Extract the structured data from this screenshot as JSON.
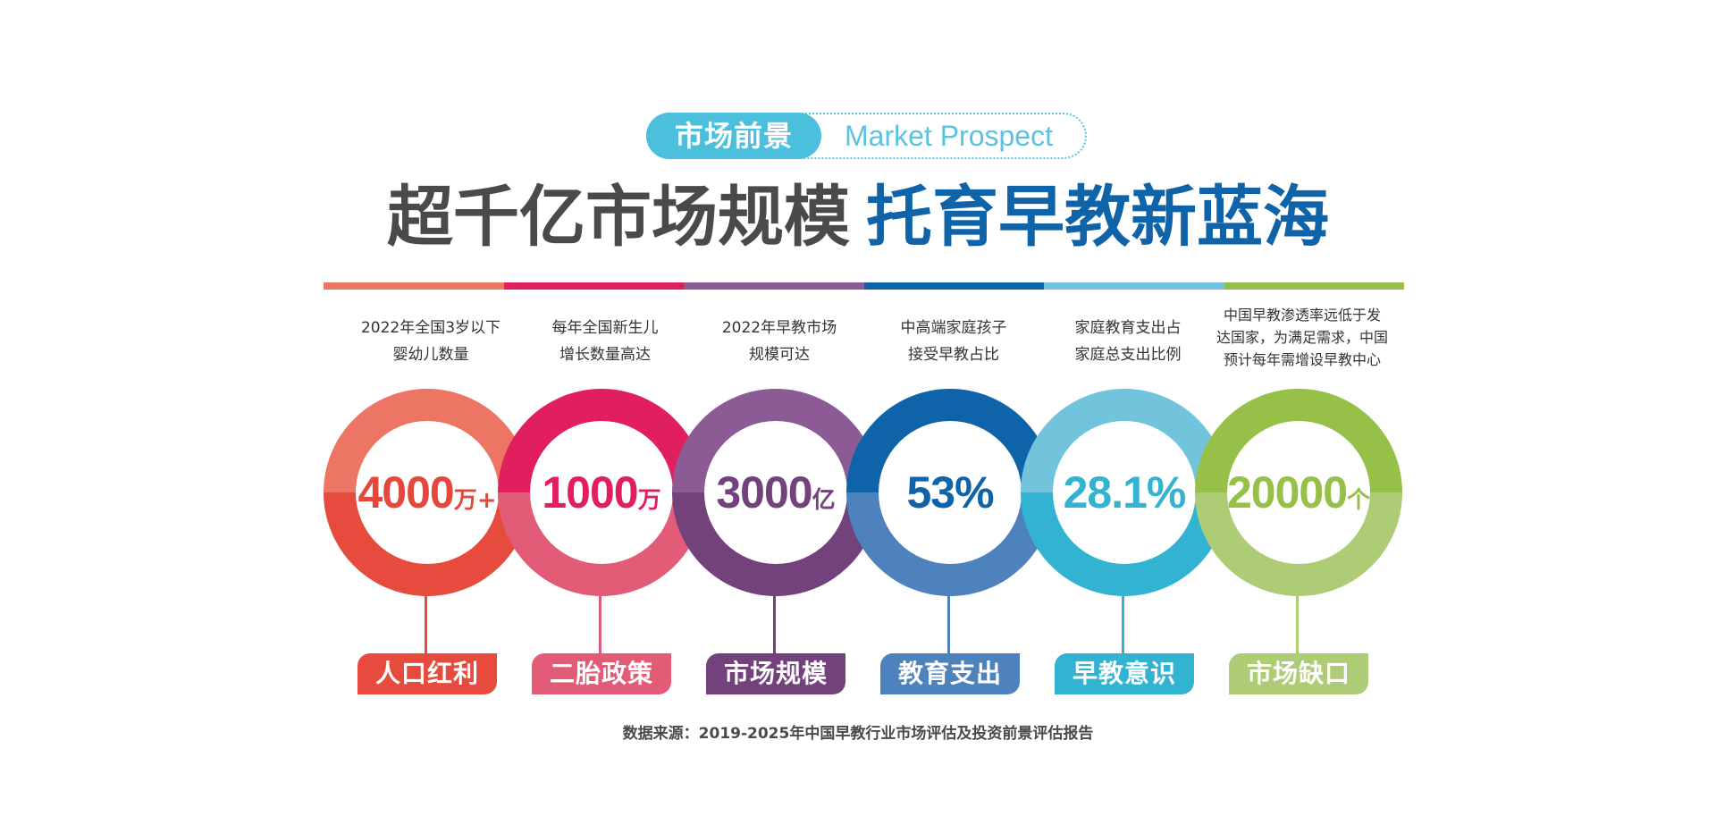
{
  "badge": {
    "label": "市场前景",
    "subtitle": "Market Prospect"
  },
  "headline": {
    "part1": "超千亿市场规模",
    "part2": "托育早教新蓝海"
  },
  "colors": {
    "coral": "#ec6b55",
    "magenta": "#e21f5e",
    "purple": "#8c5b95",
    "blue": "#0f63a8",
    "sky": "#4bbfdc",
    "green": "#96c047",
    "title_gray": "#4a4a4a",
    "title_blue": "#0f63a8"
  },
  "items": [
    {
      "desc_lines": [
        "2022年全国3岁以下",
        "婴幼儿数量"
      ],
      "value": "4000",
      "unit": "万+",
      "label": "人口红利",
      "color_top": "#ec7663",
      "color_bottom": "#e64b3e",
      "value_color": "#e5473d",
      "label_bg": "#e64b3e"
    },
    {
      "desc_lines": [
        "每年全国新生儿",
        "增长数量高达"
      ],
      "value": "1000",
      "unit": "万",
      "label": "二胎政策",
      "color_top": "#e21f5e",
      "color_bottom": "#e25c78",
      "value_color": "#e21f5e",
      "label_bg": "#e25c78"
    },
    {
      "desc_lines": [
        "2022年早教市场",
        "规模可达"
      ],
      "value": "3000",
      "unit": "亿",
      "label": "市场规模",
      "color_top": "#8c5b95",
      "color_bottom": "#73427c",
      "value_color": "#73427c",
      "label_bg": "#73427c"
    },
    {
      "desc_lines": [
        "中高端家庭孩子",
        "接受早教占比"
      ],
      "value": "53%",
      "unit": "",
      "label": "教育支出",
      "color_top": "#0f63a8",
      "color_bottom": "#4d82bc",
      "value_color": "#0f63a8",
      "label_bg": "#4d82bc"
    },
    {
      "desc_lines": [
        "家庭教育支出占",
        "家庭总支出比例"
      ],
      "value": "28.1%",
      "unit": "",
      "label": "早教意识",
      "color_top": "#72c4dc",
      "color_bottom": "#33b3d2",
      "value_color": "#33b3d2",
      "label_bg": "#33b3d2"
    },
    {
      "desc_lines": [
        "中国早教渗透率远低于发",
        "达国家，为满足需求，中国",
        "预计每年需增设早教中心"
      ],
      "value": "20000",
      "unit": "个",
      "label": "市场缺口",
      "color_top": "#96c047",
      "color_bottom": "#aecc76",
      "value_color": "#96c047",
      "label_bg": "#aecc76"
    }
  ],
  "source": "数据来源：2019-2025年中国早教行业市场评估及投资前景评估报告"
}
